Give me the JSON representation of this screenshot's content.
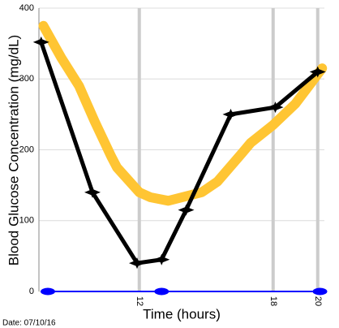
{
  "chart_data": {
    "type": "line",
    "y_label": "Blood Glucose Concentration (mg/dL)",
    "x_label": "Time (hours)",
    "footnote": "Date: 07/10/16",
    "xlim": [
      7.5,
      20.3
    ],
    "xticks": [
      12,
      18,
      20
    ],
    "ylim": [
      0,
      400
    ],
    "yticks": [
      0,
      100,
      200,
      300,
      400
    ],
    "grid": true,
    "series": [
      {
        "color": "#ffc533",
        "width": 12,
        "markers": false,
        "x": [
          7.7,
          8.5,
          9.3,
          10,
          10.75,
          11,
          12,
          12.5,
          13.3,
          14.8,
          15.5,
          16.6,
          17,
          18,
          19,
          20.2
        ],
        "values": [
          375,
          330,
          290,
          240,
          190,
          175,
          140,
          133,
          128,
          140,
          155,
          195,
          210,
          235,
          265,
          315
        ]
      },
      {
        "color": "#000000",
        "width": 5,
        "markers": true,
        "x": [
          7.6,
          9.9,
          11.9,
          13,
          14.1,
          16.1,
          18.1,
          20
        ],
        "values": [
          352,
          140,
          40,
          45,
          115,
          250,
          260,
          310
        ]
      },
      {
        "color": "#0000ff",
        "width": 2,
        "markers": true,
        "x": [
          7.9,
          13,
          20.1
        ],
        "values": [
          0,
          0,
          0
        ]
      }
    ]
  }
}
